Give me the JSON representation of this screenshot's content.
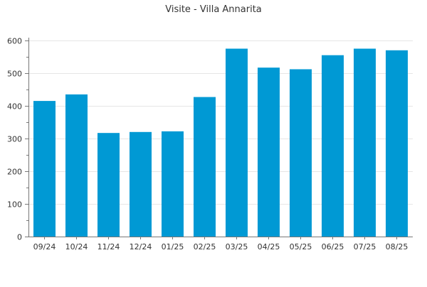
{
  "chart_data": {
    "type": "bar",
    "title": "Visite - Villa Annarita",
    "xlabel": "",
    "ylabel": "",
    "categories": [
      "09/24",
      "10/24",
      "11/24",
      "12/24",
      "01/25",
      "02/25",
      "03/25",
      "04/25",
      "05/25",
      "06/25",
      "07/25",
      "08/25"
    ],
    "values": [
      415,
      435,
      317,
      320,
      322,
      427,
      575,
      517,
      512,
      555,
      575,
      570
    ],
    "ylim": [
      0,
      600
    ],
    "yticks": [
      0,
      100,
      200,
      300,
      400,
      500,
      600
    ],
    "grid": true,
    "legend": "none",
    "colors": {
      "bar": "#0099d4",
      "grid": "#e6e6e6",
      "axis": "#777777",
      "text": "#333333"
    }
  }
}
